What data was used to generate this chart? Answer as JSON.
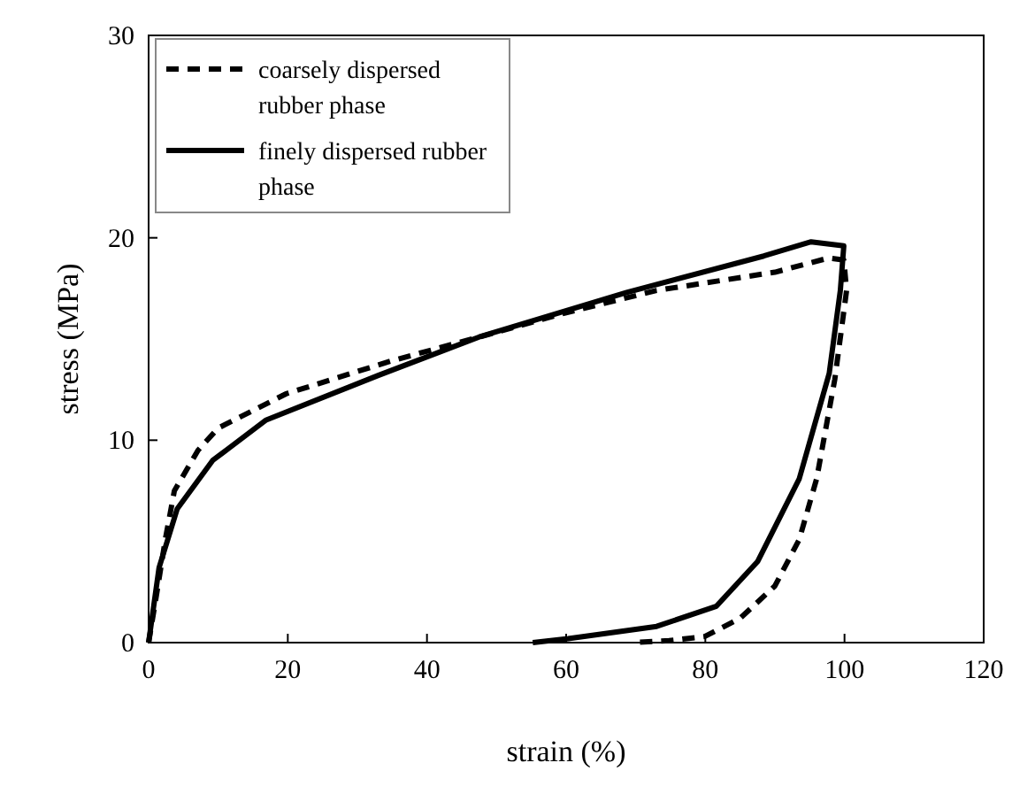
{
  "chart_data": {
    "type": "line",
    "xlabel": "strain (%)",
    "ylabel": "stress (MPa)",
    "xlim": [
      0,
      120
    ],
    "ylim": [
      0,
      30
    ],
    "xticks": [
      0,
      20,
      40,
      60,
      80,
      100,
      120
    ],
    "yticks": [
      0,
      10,
      20,
      30
    ],
    "grid": false,
    "legend": "top left",
    "series": [
      {
        "name": "coarsely dispersed rubber phase",
        "color": "#000000",
        "line_style": "dashed",
        "x": [
          0,
          1.2,
          2.4,
          3.7,
          7.1,
          10,
          19.8,
          34.7,
          47.5,
          60,
          73,
          90,
          97.7,
          99.9,
          100.3,
          98.6,
          96,
          93.5,
          90,
          85,
          79.9,
          74.8,
          69.6
        ],
        "values": [
          0,
          2.5,
          5.1,
          7.5,
          9.5,
          10.6,
          12.3,
          13.9,
          15.1,
          16.3,
          17.4,
          18.3,
          19,
          18.9,
          17.4,
          13,
          8.1,
          5.1,
          2.8,
          1.2,
          0.3,
          0.1,
          0
        ]
      },
      {
        "name": "finely dispersed rubber phase",
        "color": "#000000",
        "line_style": "solid",
        "x": [
          0,
          1.5,
          4.1,
          9.2,
          16.9,
          33,
          47.5,
          68.7,
          88.4,
          95.2,
          99.9,
          99.4,
          97.8,
          93.5,
          87.5,
          81.6,
          73,
          60.3,
          55.2
        ],
        "values": [
          0,
          3.7,
          6.6,
          9,
          11,
          13.2,
          15.1,
          17.3,
          19.1,
          19.8,
          19.6,
          17.4,
          13.3,
          8.1,
          4,
          1.8,
          0.8,
          0.2,
          0
        ]
      }
    ]
  }
}
